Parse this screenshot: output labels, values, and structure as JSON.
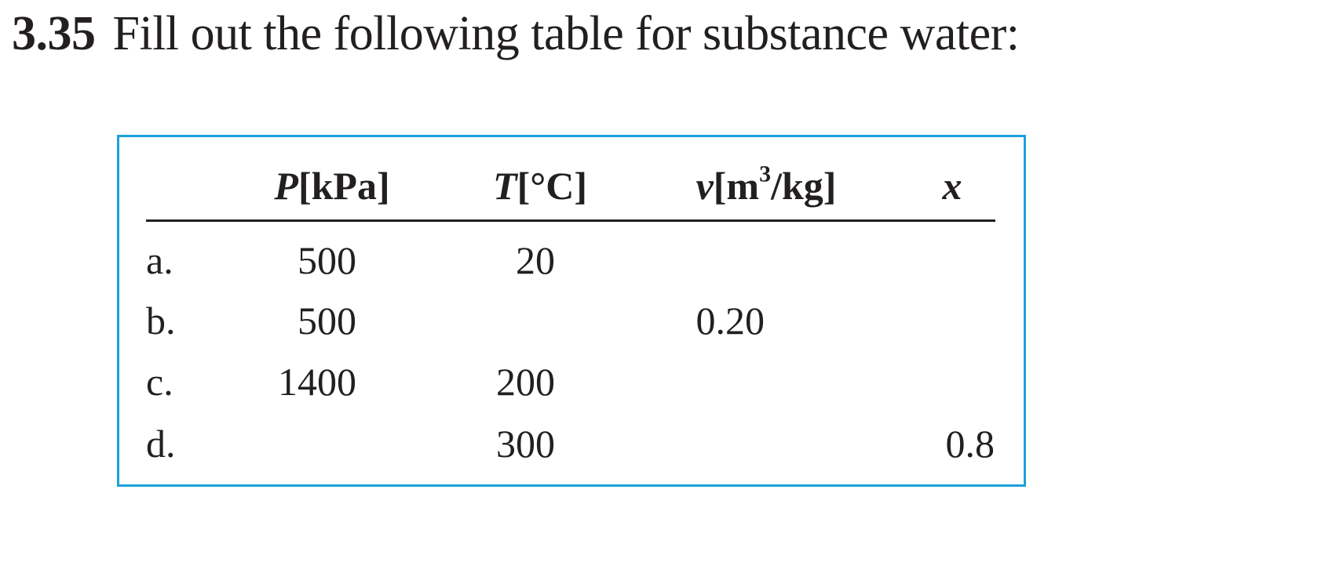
{
  "problem": {
    "number": "3.35",
    "text": "Fill out the following table for substance water:"
  },
  "table": {
    "headers": [
      {
        "symbol": "P",
        "unit": "[kPa]"
      },
      {
        "symbol": "T",
        "unit": "[°C]"
      },
      {
        "symbol": "v",
        "unit_pre": "[m",
        "unit_sup": "3",
        "unit_post": "/kg]"
      },
      {
        "symbol": "x"
      }
    ],
    "rows": [
      {
        "label": "a.",
        "P": "500",
        "T": "20",
        "v": "",
        "x": ""
      },
      {
        "label": "b.",
        "P": "500",
        "T": "",
        "v": "0.20",
        "x": ""
      },
      {
        "label": "c.",
        "P": "1400",
        "T": "200",
        "v": "",
        "x": ""
      },
      {
        "label": "d.",
        "P": "",
        "T": "300",
        "v": "",
        "x": "0.8"
      }
    ]
  },
  "colors": {
    "border": "#1ba2d8",
    "text": "#231f20"
  }
}
